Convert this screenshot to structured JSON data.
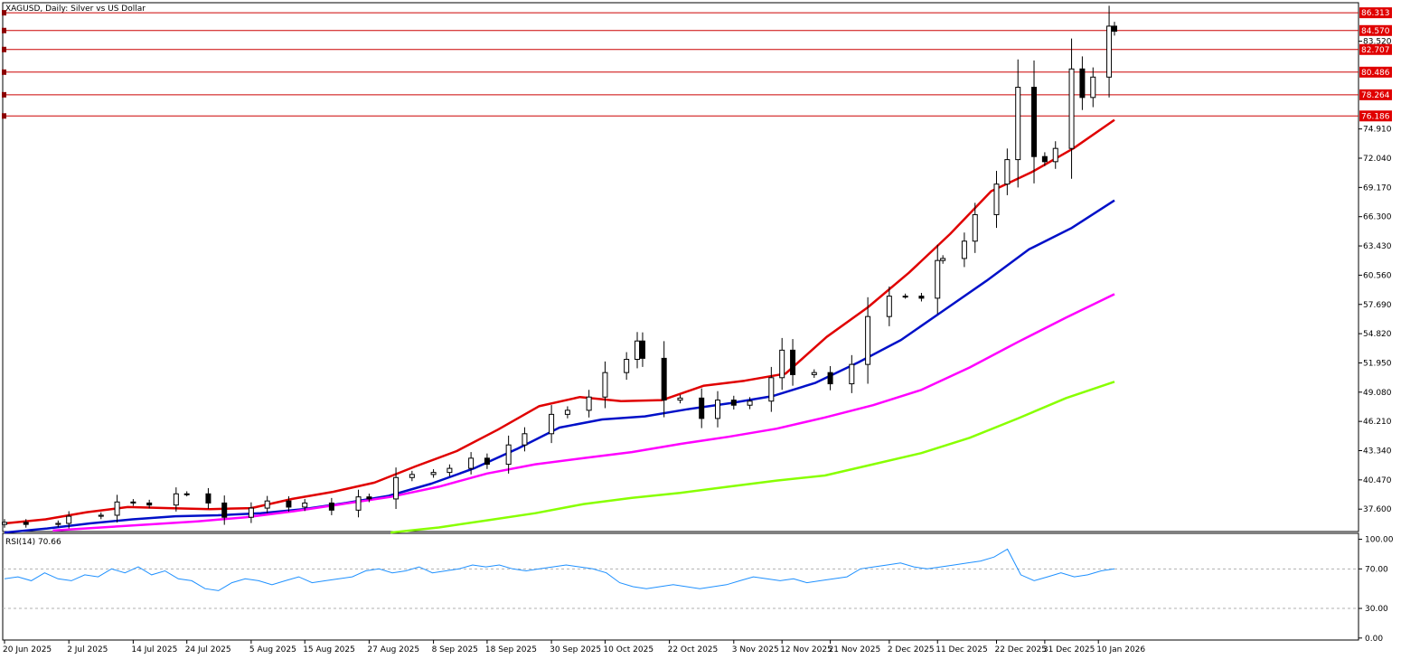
{
  "header": {
    "title": "XAGUSD, Daily:  Silver vs US Dollar"
  },
  "rsi_panel": {
    "label": "RSI(14) 70.66"
  },
  "colors": {
    "bull_candle": "#ffffff",
    "bear_candle": "#000000",
    "ma_fast": "#e00000",
    "ma_mid": "#0010c8",
    "ma_slow": "#ff00ff",
    "ma_slowest": "#88ff00",
    "level_line": "#cc0000",
    "rsi_line": "#1e90ff"
  },
  "chart_data": [
    {
      "type": "candlestick",
      "symbol": "XAGUSD",
      "timeframe": "Daily",
      "title": "XAGUSD, Daily:  Silver vs US Dollar",
      "y_axis_ticks": [
        "37.600",
        "40.470",
        "43.340",
        "46.210",
        "49.080",
        "51.950",
        "54.820",
        "57.690",
        "60.560",
        "63.430",
        "66.300",
        "69.170",
        "72.040",
        "74.910",
        "83.520"
      ],
      "ylim": [
        35.4,
        87.3
      ],
      "x_axis_labels": [
        "20 Jun 2025",
        "2 Jul 2025",
        "14 Jul 2025",
        "24 Jul 2025",
        "5 Aug 2025",
        "15 Aug 2025",
        "27 Aug 2025",
        "8 Sep 2025",
        "18 Sep 2025",
        "30 Sep 2025",
        "10 Oct 2025",
        "22 Oct 2025",
        "3 Nov 2025",
        "12 Nov 2025",
        "21 Nov 2025",
        "2 Dec 2025",
        "11 Dec 2025",
        "22 Dec 2025",
        "31 Dec 2025",
        "10 Jan 2026"
      ],
      "horizontal_levels": [
        {
          "value": 86.313,
          "label": "86.313"
        },
        {
          "value": 84.57,
          "label": "84.570"
        },
        {
          "value": 82.707,
          "label": "82.707"
        },
        {
          "value": 80.486,
          "label": "80.486"
        },
        {
          "value": 78.264,
          "label": "78.264"
        },
        {
          "value": 76.186,
          "label": "76.186"
        }
      ],
      "moving_averages": [
        {
          "color": "#e00000",
          "x_range": [
            "20 Jun 2025",
            "13 Jan 2026"
          ],
          "values": [
            36.2,
            36.6,
            37.3,
            37.8,
            37.7,
            37.6,
            37.7,
            38.6,
            39.3,
            40.2,
            41.8,
            43.3,
            45.4,
            47.7,
            48.6,
            48.2,
            48.3,
            49.7,
            50.2,
            50.9,
            54.5,
            57.4,
            60.8,
            64.6,
            68.8,
            70.7,
            73.0,
            75.8
          ]
        },
        {
          "color": "#0010c8",
          "x_range": [
            "20 Jun 2025",
            "13 Jan 2026"
          ],
          "values": [
            35.3,
            35.7,
            36.2,
            36.6,
            36.9,
            37.0,
            37.2,
            37.6,
            38.2,
            38.9,
            40.1,
            41.6,
            43.5,
            45.6,
            46.4,
            46.7,
            47.4,
            48.0,
            48.7,
            50.0,
            52.0,
            54.2,
            57.1,
            60.0,
            63.1,
            65.2,
            67.9
          ]
        },
        {
          "color": "#ff00ff",
          "x_range": [
            "29 Jun 2025",
            "13 Jan 2026"
          ],
          "values": [
            35.5,
            35.8,
            36.1,
            36.4,
            36.8,
            37.4,
            38.1,
            38.8,
            39.8,
            41.1,
            42.0,
            42.6,
            43.2,
            44.0,
            44.7,
            45.5,
            46.6,
            47.8,
            49.3,
            51.5,
            54.0,
            56.4,
            58.7
          ]
        },
        {
          "color": "#88ff00",
          "x_range": [
            "31 Aug 2025",
            "13 Jan 2026"
          ],
          "values": [
            35.3,
            35.8,
            36.5,
            37.2,
            38.1,
            38.7,
            39.2,
            39.8,
            40.4,
            40.9,
            42.0,
            43.1,
            44.6,
            46.5,
            48.5,
            50.1
          ]
        }
      ],
      "candles_approx": [
        {
          "date": "20 Jun 2025",
          "close": 36.3
        },
        {
          "date": "24 Jun 2025",
          "close": 36.1
        },
        {
          "date": "30 Jun 2025",
          "close": 36.2
        },
        {
          "date": "2 Jul 2025",
          "close": 36.9
        },
        {
          "date": "8 Jul 2025",
          "close": 37.0
        },
        {
          "date": "11 Jul 2025",
          "close": 38.3
        },
        {
          "date": "14 Jul 2025",
          "close": 38.2
        },
        {
          "date": "17 Jul 2025",
          "close": 38.0
        },
        {
          "date": "22 Jul 2025",
          "close": 39.1
        },
        {
          "date": "24 Jul 2025",
          "close": 39.1
        },
        {
          "date": "28 Jul 2025",
          "close": 38.2
        },
        {
          "date": "31 Jul 2025",
          "close": 36.8
        },
        {
          "date": "5 Aug 2025",
          "close": 37.7
        },
        {
          "date": "8 Aug 2025",
          "close": 38.4
        },
        {
          "date": "12 Aug 2025",
          "close": 37.8
        },
        {
          "date": "15 Aug 2025",
          "close": 38.2
        },
        {
          "date": "20 Aug 2025",
          "close": 37.5
        },
        {
          "date": "25 Aug 2025",
          "close": 38.8
        },
        {
          "date": "27 Aug 2025",
          "close": 38.6
        },
        {
          "date": "1 Sep 2025",
          "close": 40.7
        },
        {
          "date": "4 Sep 2025",
          "close": 41.0
        },
        {
          "date": "8 Sep 2025",
          "close": 41.2
        },
        {
          "date": "11 Sep 2025",
          "close": 41.6
        },
        {
          "date": "15 Sep 2025",
          "close": 42.6
        },
        {
          "date": "18 Sep 2025",
          "close": 42.0
        },
        {
          "date": "22 Sep 2025",
          "close": 43.9
        },
        {
          "date": "25 Sep 2025",
          "close": 45.0
        },
        {
          "date": "30 Sep 2025",
          "close": 46.9
        },
        {
          "date": "3 Oct 2025",
          "close": 47.3
        },
        {
          "date": "7 Oct 2025",
          "close": 48.6
        },
        {
          "date": "10 Oct 2025",
          "close": 51.0
        },
        {
          "date": "14 Oct 2025",
          "close": 52.3
        },
        {
          "date": "16 Oct 2025",
          "close": 54.1
        },
        {
          "date": "17 Oct 2025",
          "close": 52.4
        },
        {
          "date": "21 Oct 2025",
          "close": 48.3
        },
        {
          "date": "24 Oct 2025",
          "close": 48.5
        },
        {
          "date": "28 Oct 2025",
          "close": 46.5
        },
        {
          "date": "31 Oct 2025",
          "close": 48.3
        },
        {
          "date": "3 Nov 2025",
          "close": 47.8
        },
        {
          "date": "6 Nov 2025",
          "close": 48.2
        },
        {
          "date": "10 Nov 2025",
          "close": 50.5
        },
        {
          "date": "12 Nov 2025",
          "close": 53.2
        },
        {
          "date": "14 Nov 2025",
          "close": 50.8
        },
        {
          "date": "18 Nov 2025",
          "close": 51.0
        },
        {
          "date": "21 Nov 2025",
          "close": 49.9
        },
        {
          "date": "25 Nov 2025",
          "close": 51.8
        },
        {
          "date": "28 Nov 2025",
          "close": 56.5
        },
        {
          "date": "2 Dec 2025",
          "close": 58.5
        },
        {
          "date": "5 Dec 2025",
          "close": 58.5
        },
        {
          "date": "8 Dec 2025",
          "close": 58.3
        },
        {
          "date": "11 Dec 2025",
          "close": 62.0
        },
        {
          "date": "12 Dec 2025",
          "close": 62.2
        },
        {
          "date": "16 Dec 2025",
          "close": 63.9
        },
        {
          "date": "18 Dec 2025",
          "close": 66.5
        },
        {
          "date": "22 Dec 2025",
          "close": 69.5
        },
        {
          "date": "24 Dec 2025",
          "close": 71.9
        },
        {
          "date": "26 Dec 2025",
          "close": 79.0
        },
        {
          "date": "29 Dec 2025",
          "close": 72.2
        },
        {
          "date": "31 Dec 2025",
          "close": 71.7
        },
        {
          "date": "2 Jan 2026",
          "close": 73.0
        },
        {
          "date": "5 Jan 2026",
          "close": 80.8
        },
        {
          "date": "7 Jan 2026",
          "close": 78.0
        },
        {
          "date": "9 Jan 2026",
          "close": 80.0
        },
        {
          "date": "12 Jan 2026",
          "close": 85.0
        },
        {
          "date": "13 Jan 2026",
          "close": 84.5
        }
      ]
    },
    {
      "type": "line",
      "title": "RSI(14) 70.66",
      "y_axis_ticks": [
        "100.00",
        "70.00",
        "30.00",
        "0.00"
      ],
      "ylim": [
        -2,
        106
      ],
      "reference_lines": [
        70,
        30
      ],
      "series": [
        {
          "values": [
            60,
            62,
            58,
            66,
            60,
            58,
            64,
            62,
            70,
            66,
            72,
            64,
            68,
            60,
            58,
            50,
            48,
            56,
            60,
            58,
            54,
            58,
            62,
            56,
            58,
            60,
            62,
            68,
            70,
            66,
            68,
            72,
            66,
            68,
            70,
            74,
            72,
            74,
            70,
            68,
            70,
            72,
            74,
            72,
            70,
            66,
            56,
            52,
            50,
            52,
            54,
            52,
            50,
            52,
            54,
            58,
            62,
            60,
            58,
            60,
            56,
            58,
            60,
            62,
            70,
            72,
            74,
            76,
            72,
            70,
            72,
            74,
            76,
            78,
            82,
            90,
            64,
            58,
            62,
            66,
            62,
            64,
            68,
            70
          ]
        }
      ]
    }
  ]
}
